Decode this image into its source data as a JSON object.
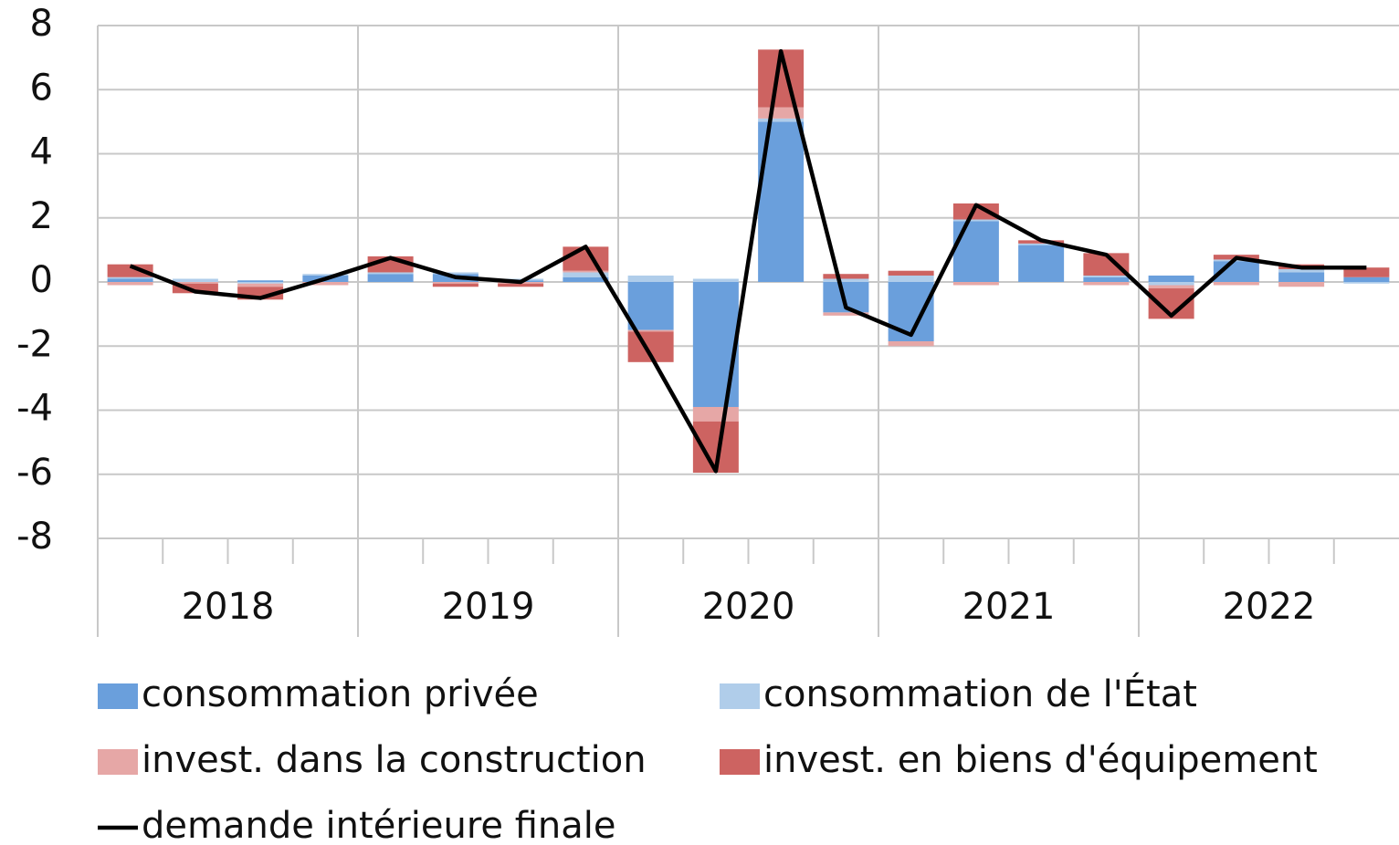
{
  "chart_data": {
    "type": "stacked_bar_line",
    "categories": [
      null,
      null,
      null,
      null,
      null,
      null,
      null,
      null,
      null,
      null,
      null,
      null,
      null,
      null,
      null,
      null,
      null,
      null,
      null,
      null
    ],
    "years": [
      "2018",
      "2019",
      "2020",
      "2021",
      "2022"
    ],
    "ylim": [
      -8,
      8
    ],
    "yticks": [
      -8,
      -6,
      -4,
      -2,
      0,
      2,
      4,
      6,
      8
    ],
    "grid": true,
    "series": [
      {
        "name": "consommation privée",
        "color": "#6a9fdc",
        "values": [
          0.1,
          0.0,
          0.05,
          0.2,
          0.25,
          0.25,
          0.05,
          0.15,
          -1.5,
          -3.9,
          5.0,
          -0.95,
          -1.85,
          1.9,
          1.15,
          0.15,
          0.2,
          0.65,
          0.3,
          0.15
        ]
      },
      {
        "name": "consommation de l'État",
        "color": "#b0cdea",
        "values": [
          0.05,
          0.1,
          -0.05,
          0.05,
          0.05,
          0.05,
          0.05,
          0.15,
          0.2,
          0.1,
          0.1,
          0.1,
          0.2,
          0.05,
          0.05,
          0.05,
          -0.1,
          0.05,
          0.1,
          -0.05
        ]
      },
      {
        "name": "invest. dans la construction",
        "color": "#e6a7a6",
        "values": [
          -0.1,
          -0.05,
          -0.1,
          -0.1,
          0.0,
          -0.05,
          -0.05,
          0.05,
          -0.05,
          -0.45,
          0.35,
          -0.1,
          -0.15,
          -0.1,
          0.0,
          -0.1,
          -0.1,
          -0.1,
          -0.15,
          0.0
        ]
      },
      {
        "name": "invest. en biens d'équipement",
        "color": "#cd6361",
        "values": [
          0.4,
          -0.3,
          -0.4,
          0.0,
          0.5,
          -0.1,
          -0.1,
          0.75,
          -0.95,
          -1.6,
          1.8,
          0.15,
          0.15,
          0.5,
          0.1,
          0.7,
          -0.95,
          0.15,
          0.15,
          0.3
        ]
      },
      {
        "name": "demande intérieure finale",
        "color": "#000000",
        "kind": "line",
        "values": [
          0.5,
          -0.3,
          -0.5,
          0.1,
          0.75,
          0.15,
          0.0,
          1.1,
          -2.3,
          -5.9,
          7.2,
          -0.8,
          -1.65,
          2.4,
          1.3,
          0.85,
          -1.05,
          0.75,
          0.45,
          0.45
        ]
      }
    ]
  }
}
